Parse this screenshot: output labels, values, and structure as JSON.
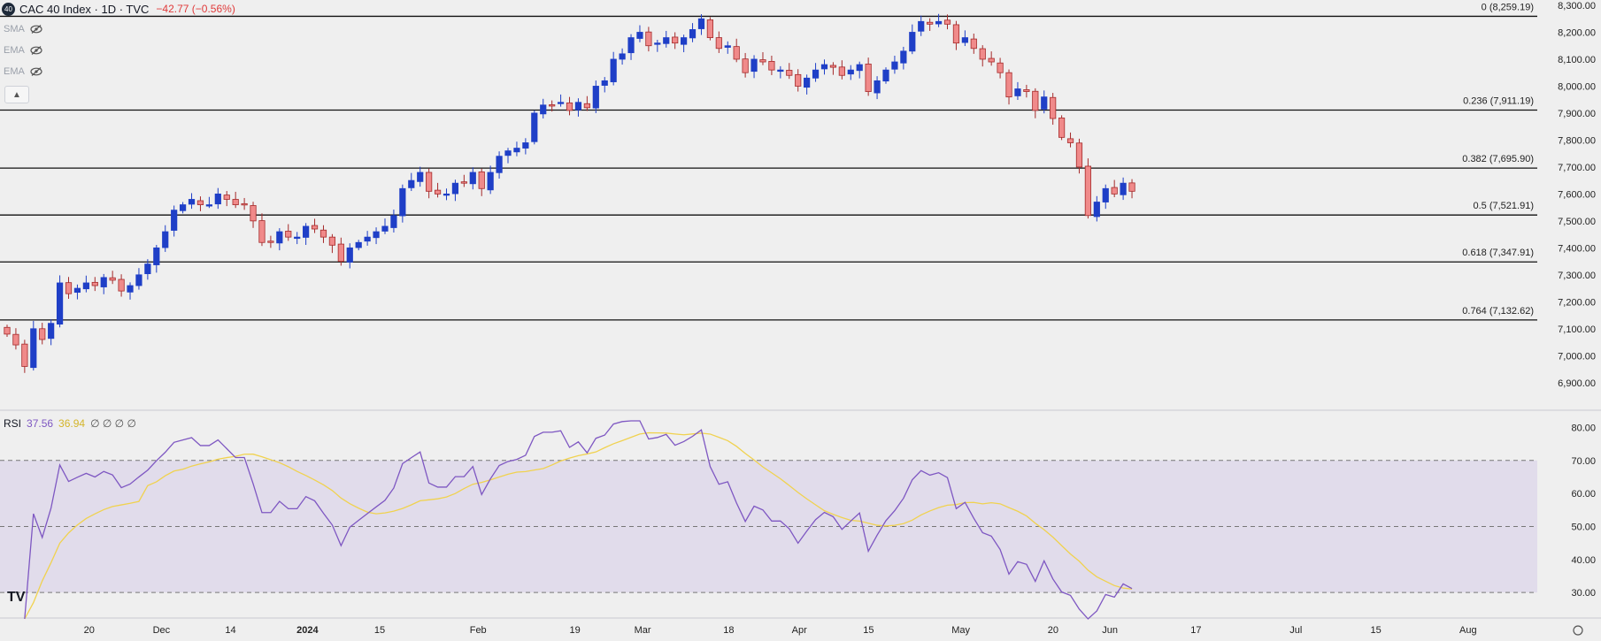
{
  "header": {
    "badge": "40",
    "symbol_title": "CAC 40 Index · 1D · TVC",
    "change": "−42.77 (−0.56%)"
  },
  "indicators": [
    {
      "label": "SMA",
      "icon": "eye-off-icon"
    },
    {
      "label": "EMA",
      "icon": "eye-off-icon"
    },
    {
      "label": "EMA",
      "icon": "eye-off-icon"
    }
  ],
  "collapse_icon": "chevron-up-icon",
  "rsi": {
    "label": "RSI",
    "value1": "37.56",
    "value2": "36.94",
    "extra": "∅ ∅ ∅ ∅"
  },
  "tv_logo": "TV",
  "colors": {
    "up": "#1f3fc7",
    "down": "#f08a8a",
    "down_border": "#a52a2a",
    "rsi_line": "#7e57c2",
    "rsi_ma": "#f0d24f",
    "rsi_band": "#dcd6ea"
  },
  "chart_data": [
    {
      "type": "candlestick",
      "title": "CAC 40 Index · 1D · TVC",
      "ylim": [
        6850,
        8300
      ],
      "y_ticks": [
        "8,300.00",
        "8,200.00",
        "8,100.00",
        "8,000.00",
        "7,900.00",
        "7,800.00",
        "7,700.00",
        "7,600.00",
        "7,500.00",
        "7,400.00",
        "7,300.00",
        "7,200.00",
        "7,100.00",
        "7,000.00",
        "6,900.00"
      ],
      "x_ticks": [
        "20",
        "Dec",
        "14",
        "2024",
        "15",
        "Feb",
        "19",
        "Mar",
        "18",
        "Apr",
        "15",
        "May",
        "20",
        "Jun",
        "17",
        "Jul",
        "15",
        "Aug"
      ],
      "fib_levels": [
        {
          "label": "0 (8,259.19)",
          "value": 8259.19
        },
        {
          "label": "0.236 (7,911.19)",
          "value": 7911.19
        },
        {
          "label": "0.382 (7,695.90)",
          "value": 7695.9
        },
        {
          "label": "0.5 (7,521.91)",
          "value": 7521.91
        },
        {
          "label": "0.618 (7,347.91)",
          "value": 7347.91
        },
        {
          "label": "0.764 (7,132.62)",
          "value": 7132.62
        }
      ],
      "closes": [
        7080,
        7040,
        6960,
        7100,
        7060,
        7120,
        7270,
        7230,
        7250,
        7270,
        7260,
        7290,
        7280,
        7240,
        7260,
        7300,
        7340,
        7400,
        7460,
        7540,
        7560,
        7580,
        7560,
        7560,
        7600,
        7580,
        7560,
        7560,
        7500,
        7420,
        7420,
        7460,
        7440,
        7440,
        7480,
        7470,
        7440,
        7410,
        7350,
        7400,
        7420,
        7440,
        7460,
        7480,
        7520,
        7620,
        7650,
        7680,
        7610,
        7600,
        7600,
        7640,
        7640,
        7680,
        7620,
        7680,
        7740,
        7760,
        7770,
        7790,
        7900,
        7930,
        7930,
        7940,
        7910,
        7940,
        7920,
        8000,
        8020,
        8100,
        8120,
        8180,
        8200,
        8150,
        8160,
        8180,
        8160,
        8180,
        8210,
        8250,
        8180,
        8140,
        8150,
        8100,
        8050,
        8100,
        8090,
        8060,
        8060,
        8040,
        8000,
        8030,
        8060,
        8080,
        8070,
        8040,
        8060,
        8080,
        7980,
        8020,
        8060,
        8090,
        8130,
        8200,
        8240,
        8230,
        8240,
        8230,
        8160,
        8180,
        8140,
        8100,
        8090,
        8050,
        7960,
        7990,
        7980,
        7910,
        7960,
        7880,
        7810,
        7790,
        7700,
        7520,
        7570,
        7620,
        7600,
        7640,
        7610
      ],
      "rsi_ylim": [
        22,
        82
      ],
      "rsi_ticks": [
        "80.00",
        "70.00",
        "60.00",
        "50.00",
        "40.00",
        "30.00"
      ],
      "rsi_band": [
        30,
        70
      ],
      "rsi_mid": 50
    }
  ]
}
